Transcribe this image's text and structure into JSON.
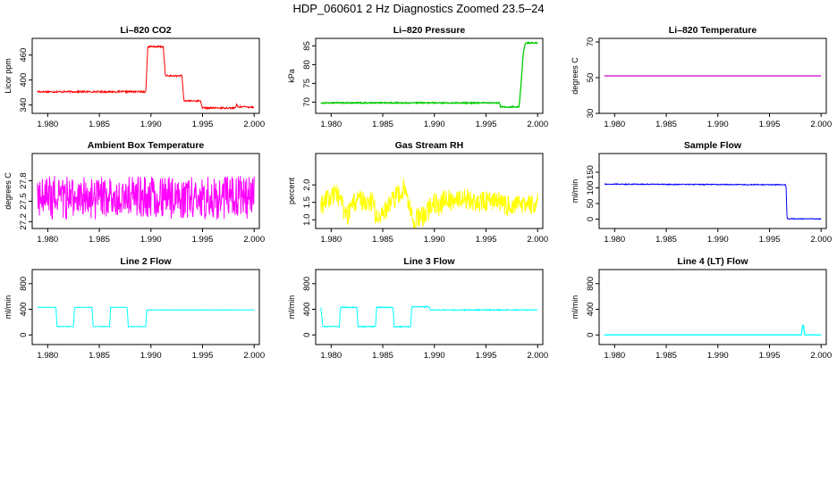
{
  "title": "HDP_060601  2 Hz Diagnostics Zoomed 23.5–24",
  "chart_data": [
    {
      "type": "line",
      "title": "Li–820 CO2",
      "ylabel": "Licor ppm",
      "color": "#ff0000",
      "xlim": [
        1.9785,
        2.0005
      ],
      "ylim": [
        320,
        500
      ],
      "xticks": [
        "1.980",
        "1.985",
        "1.990",
        "1.995",
        "2.000"
      ],
      "yticks": [
        "340",
        "400",
        "460"
      ],
      "series": [
        {
          "x": [
            1.979,
            1.9895,
            1.9897,
            1.9912,
            1.9914,
            1.993,
            1.9932,
            1.9948,
            1.995,
            1.9982,
            1.9983,
            1.9985,
            1.9986,
            2.0
          ],
          "y": [
            372,
            372,
            480,
            480,
            410,
            410,
            350,
            350,
            333,
            333,
            342,
            334,
            336,
            335
          ]
        }
      ],
      "noise": 2
    },
    {
      "type": "line",
      "title": "Li–820 Pressure",
      "ylabel": "kPa",
      "color": "#00cc00",
      "xlim": [
        1.9785,
        2.0005
      ],
      "ylim": [
        67,
        87
      ],
      "xticks": [
        "1.980",
        "1.985",
        "1.990",
        "1.995",
        "2.000"
      ],
      "yticks": [
        "70",
        "75",
        "80",
        "85"
      ],
      "series": [
        {
          "x": [
            1.979,
            1.9963,
            1.9964,
            1.9982,
            1.9984,
            1.9986,
            1.9988,
            1.999,
            2.0
          ],
          "y": [
            69.8,
            69.8,
            68.7,
            68.7,
            75,
            83,
            85.6,
            85.8,
            85.8
          ]
        }
      ],
      "noise": 0.15
    },
    {
      "type": "line",
      "title": "Li–820 Temperature",
      "ylabel": "degrees C",
      "color": "#cc00cc",
      "xlim": [
        1.9785,
        2.0005
      ],
      "ylim": [
        30,
        72
      ],
      "xticks": [
        "1.980",
        "1.985",
        "1.990",
        "1.995",
        "2.000"
      ],
      "yticks": [
        "30",
        "50",
        "70"
      ],
      "series": [
        {
          "x": [
            1.979,
            2.0
          ],
          "y": [
            51,
            51
          ]
        }
      ],
      "noise": 0
    },
    {
      "type": "line",
      "title": "Ambient Box Temperature",
      "ylabel": "degrees C",
      "color": "#ff00ff",
      "xlim": [
        1.9785,
        2.0005
      ],
      "ylim": [
        27.1,
        28.2
      ],
      "xticks": [
        "1.980",
        "1.985",
        "1.990",
        "1.995",
        "2.000"
      ],
      "yticks": [
        "27.2",
        "27.5",
        "27.8"
      ],
      "series": [
        {
          "x": [
            1.979,
            2.0
          ],
          "y": [
            27.55,
            27.55
          ]
        }
      ],
      "noise": 0.32
    },
    {
      "type": "line",
      "title": "Gas Stream RH",
      "ylabel": "percent",
      "color": "#ffff00",
      "xlim": [
        1.9785,
        2.0005
      ],
      "ylim": [
        0.75,
        2.9
      ],
      "xticks": [
        "1.980",
        "1.985",
        "1.990",
        "1.995",
        "2.000"
      ],
      "yticks": [
        "1.0",
        "1.5",
        "2.0"
      ],
      "series": [
        {
          "x": [
            1.979,
            1.9805,
            1.9815,
            1.9825,
            1.9835,
            1.984,
            1.9845,
            1.9855,
            1.987,
            1.9875,
            1.988,
            1.989,
            1.99,
            1.9905,
            1.991,
            1.992,
            1.993,
            1.9945,
            1.996,
            1.997,
            1.998,
            1.999,
            2.0
          ],
          "y": [
            1.4,
            1.8,
            1.1,
            1.6,
            1.5,
            1.5,
            1.0,
            1.4,
            1.9,
            1.4,
            1.0,
            1.1,
            1.5,
            1.4,
            1.6,
            1.5,
            1.6,
            1.5,
            1.6,
            1.4,
            1.5,
            1.4,
            1.5
          ]
        }
      ],
      "noise": 0.3
    },
    {
      "type": "line",
      "title": "Sample Flow",
      "ylabel": "ml/min",
      "color": "#0000ff",
      "xlim": [
        1.9785,
        2.0005
      ],
      "ylim": [
        -30,
        210
      ],
      "xticks": [
        "1.980",
        "1.985",
        "1.990",
        "1.995",
        "2.000"
      ],
      "yticks": [
        "0",
        "50",
        "100",
        "150"
      ],
      "series": [
        {
          "x": [
            1.979,
            1.9966,
            1.9967,
            2.0
          ],
          "y": [
            112,
            110,
            1,
            1
          ]
        }
      ],
      "noise": 1.5
    },
    {
      "type": "line",
      "title": "Line 2 Flow",
      "ylabel": "ml/min",
      "color": "#00ffff",
      "xlim": [
        1.9785,
        2.0005
      ],
      "ylim": [
        -150,
        1020
      ],
      "xticks": [
        "1.980",
        "1.985",
        "1.990",
        "1.995",
        "2.000"
      ],
      "yticks": [
        "0",
        "400",
        "800"
      ],
      "series": [
        {
          "x": [
            1.979,
            1.9792,
            1.9808,
            1.9809,
            1.9825,
            1.9826,
            1.9843,
            1.9844,
            1.986,
            1.9861,
            1.9877,
            1.9878,
            1.9895,
            1.9896,
            2.0
          ],
          "y": [
            430,
            430,
            430,
            130,
            130,
            430,
            430,
            130,
            130,
            430,
            430,
            130,
            130,
            390,
            390
          ]
        }
      ],
      "noise": 4
    },
    {
      "type": "line",
      "title": "Line 3 Flow",
      "ylabel": "ml/min",
      "color": "#00ffff",
      "xlim": [
        1.9785,
        2.0005
      ],
      "ylim": [
        -150,
        1020
      ],
      "xticks": [
        "1.980",
        "1.985",
        "1.990",
        "1.995",
        "2.000"
      ],
      "yticks": [
        "0",
        "400",
        "800"
      ],
      "series": [
        {
          "x": [
            1.979,
            1.9792,
            1.9793,
            1.9808,
            1.9809,
            1.9825,
            1.9826,
            1.9843,
            1.9844,
            1.986,
            1.9861,
            1.9877,
            1.9878,
            1.9895,
            1.9896,
            2.0
          ],
          "y": [
            430,
            130,
            130,
            130,
            430,
            430,
            130,
            130,
            430,
            430,
            130,
            130,
            440,
            440,
            390,
            390
          ]
        }
      ],
      "noise": 8
    },
    {
      "type": "line",
      "title": "Line 4 (LT) Flow",
      "ylabel": "ml/min",
      "color": "#00ffff",
      "xlim": [
        1.9785,
        2.0005
      ],
      "ylim": [
        -150,
        1020
      ],
      "xticks": [
        "1.980",
        "1.985",
        "1.990",
        "1.995",
        "2.000"
      ],
      "yticks": [
        "0",
        "400",
        "800"
      ],
      "series": [
        {
          "x": [
            1.979,
            1.9981,
            1.9982,
            1.9983,
            1.9984,
            2.0
          ],
          "y": [
            0,
            0,
            150,
            150,
            0,
            0
          ]
        }
      ],
      "noise": 0
    }
  ]
}
